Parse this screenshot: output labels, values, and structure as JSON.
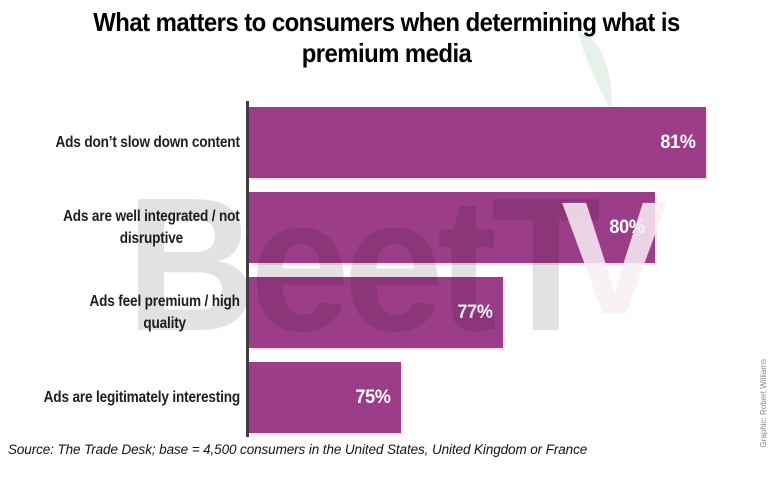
{
  "title": "What matters to consumers when determining what is premium media",
  "title_lines": [
    "What matters to consumers when determining what is",
    "premium media"
  ],
  "source_note": "Source: The Trade Desk; base = 4,500 consumers in the United States, United Kingdom or France",
  "credit": "Graphic: Robert Williams",
  "watermark": {
    "text": "BeetTV",
    "part_gray": "BeetT",
    "part_light": "V"
  },
  "colors": {
    "bar": "#9B3D88",
    "axis": "#3E3E3E",
    "title_text": "#000000",
    "label_text": "#1F1F1F",
    "value_text": "#FFFFFF",
    "watermark_gray": "#E3E1E3",
    "watermark_light": "rgba(249,239,246,0.85)",
    "leaf_green": "#E6F2E9",
    "source_text": "#141414",
    "credit_text": "#8C8C8C",
    "background": "#FFFFFF"
  },
  "chart_data": {
    "type": "bar",
    "orientation": "horizontal",
    "title": "What matters to consumers when determining what is premium media",
    "categories": [
      "Ads don’t slow down content",
      "Ads are well integrated / not disruptive",
      "Ads feel premium / high quality",
      "Ads are legitimately interesting"
    ],
    "category_lines": [
      [
        "Ads don’t slow down content"
      ],
      [
        "Ads are well integrated / not",
        "disruptive"
      ],
      [
        "Ads feel premium / high",
        "quality"
      ],
      [
        "Ads are legitimately interesting"
      ]
    ],
    "values": [
      81,
      80,
      77,
      75
    ],
    "value_labels": [
      "81%",
      "80%",
      "77%",
      "75%"
    ],
    "unit": "%",
    "xlim": [
      72,
      82
    ],
    "grid": false,
    "legend": false,
    "source": "Source: The Trade Desk; base = 4,500 consumers in the United States, United Kingdom or France"
  }
}
